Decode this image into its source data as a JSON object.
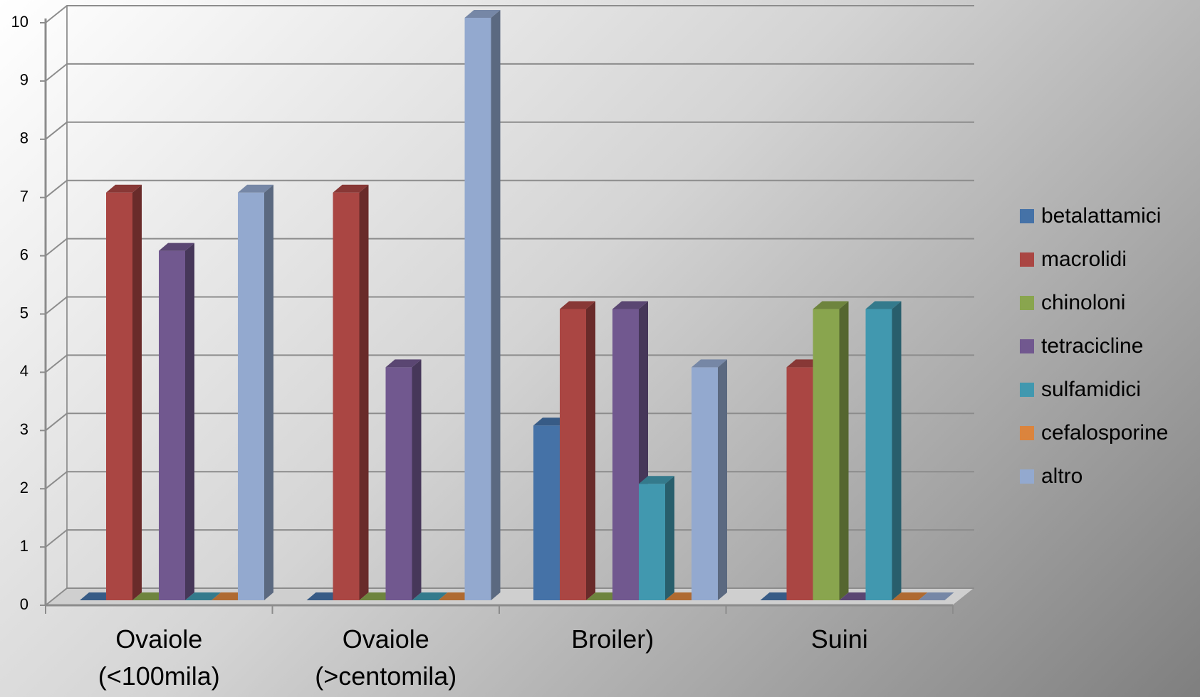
{
  "chart_data": {
    "type": "bar3d",
    "categories": [
      "Ovaiole (<100mila)",
      "Ovaiole (>centomila)",
      "Broiler)",
      "Suini"
    ],
    "series": [
      {
        "name": "betalattamici",
        "color": "#4572a7",
        "values": [
          0,
          0,
          3,
          0
        ]
      },
      {
        "name": "macrolidi",
        "color": "#aa4643",
        "values": [
          7,
          7,
          5,
          4
        ]
      },
      {
        "name": "chinoloni",
        "color": "#89a54e",
        "values": [
          0,
          0,
          0,
          5
        ]
      },
      {
        "name": "tetracicline",
        "color": "#71588f",
        "values": [
          6,
          4,
          5,
          0
        ]
      },
      {
        "name": "sulfamidici",
        "color": "#4198af",
        "values": [
          0,
          0,
          2,
          5
        ]
      },
      {
        "name": "cefalosporine",
        "color": "#db843d",
        "values": [
          0,
          0,
          0,
          0
        ]
      },
      {
        "name": "altro",
        "color": "#93a9cf",
        "values": [
          7,
          10,
          4,
          0
        ]
      }
    ],
    "ylim": [
      0,
      10
    ],
    "yticks": [
      0,
      1,
      2,
      3,
      4,
      5,
      6,
      7,
      8,
      9,
      10
    ],
    "grid": true,
    "legend": "right"
  }
}
